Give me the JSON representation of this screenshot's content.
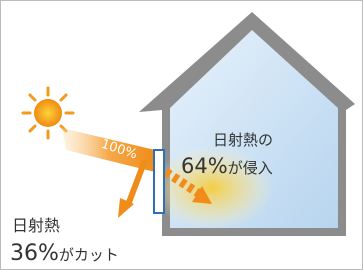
{
  "beam_label": "100%",
  "inside": {
    "line1": "日射熱の",
    "percent": "64%",
    "suffix": "が侵入"
  },
  "outside": {
    "line1": "日射熱",
    "percent": "36%",
    "suffix": "がカット"
  }
}
